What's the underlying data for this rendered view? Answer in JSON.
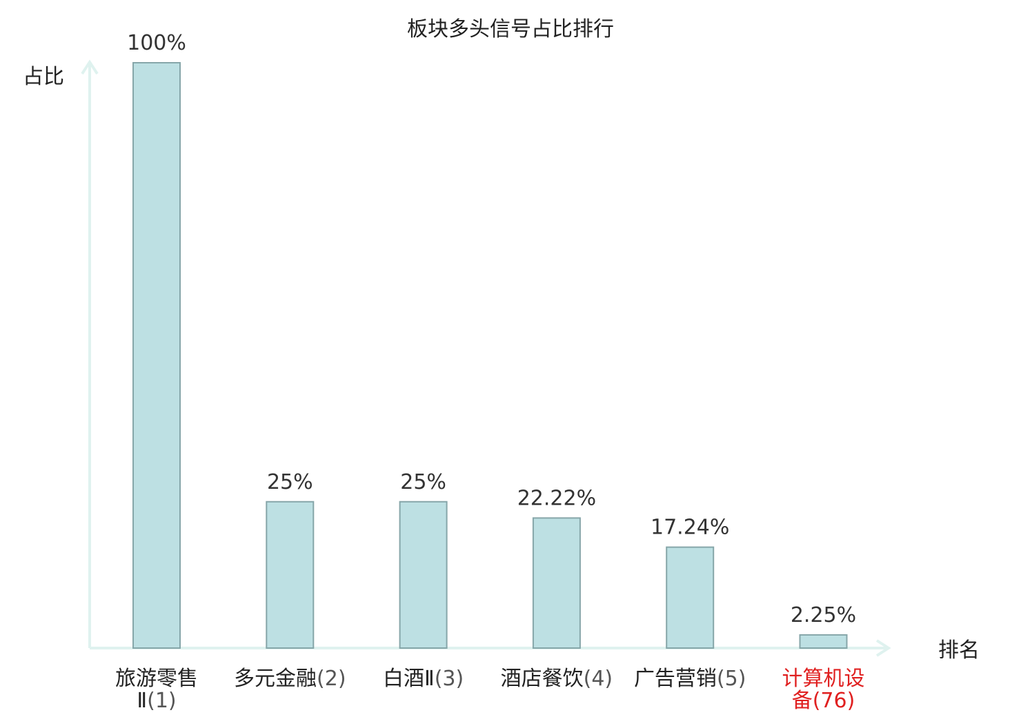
{
  "chart_data": {
    "type": "bar",
    "title": "板块多头信号占比排行",
    "ylabel": "占比",
    "xlabel": "排名",
    "ylim": [
      0,
      100
    ],
    "grid": false,
    "categories": [
      {
        "name": "旅游零售Ⅱ",
        "rank": "(1)",
        "highlight": false
      },
      {
        "name": "多元金融",
        "rank": "(2)",
        "highlight": false
      },
      {
        "name": "白酒Ⅱ",
        "rank": "(3)",
        "highlight": false
      },
      {
        "name": "酒店餐饮",
        "rank": "(4)",
        "highlight": false
      },
      {
        "name": "广告营销",
        "rank": "(5)",
        "highlight": false
      },
      {
        "name": "计算机设备",
        "rank": "(76)",
        "highlight": true
      }
    ],
    "values": [
      100,
      25,
      25,
      22.22,
      17.24,
      2.25
    ],
    "value_labels": [
      "100%",
      "25%",
      "25%",
      "22.22%",
      "17.24%",
      "2.25%"
    ]
  },
  "colors": {
    "bar_fill": "#bde0e3",
    "bar_stroke": "#86a6a9",
    "axis": "#dff2ef",
    "highlight": "#e02020"
  }
}
